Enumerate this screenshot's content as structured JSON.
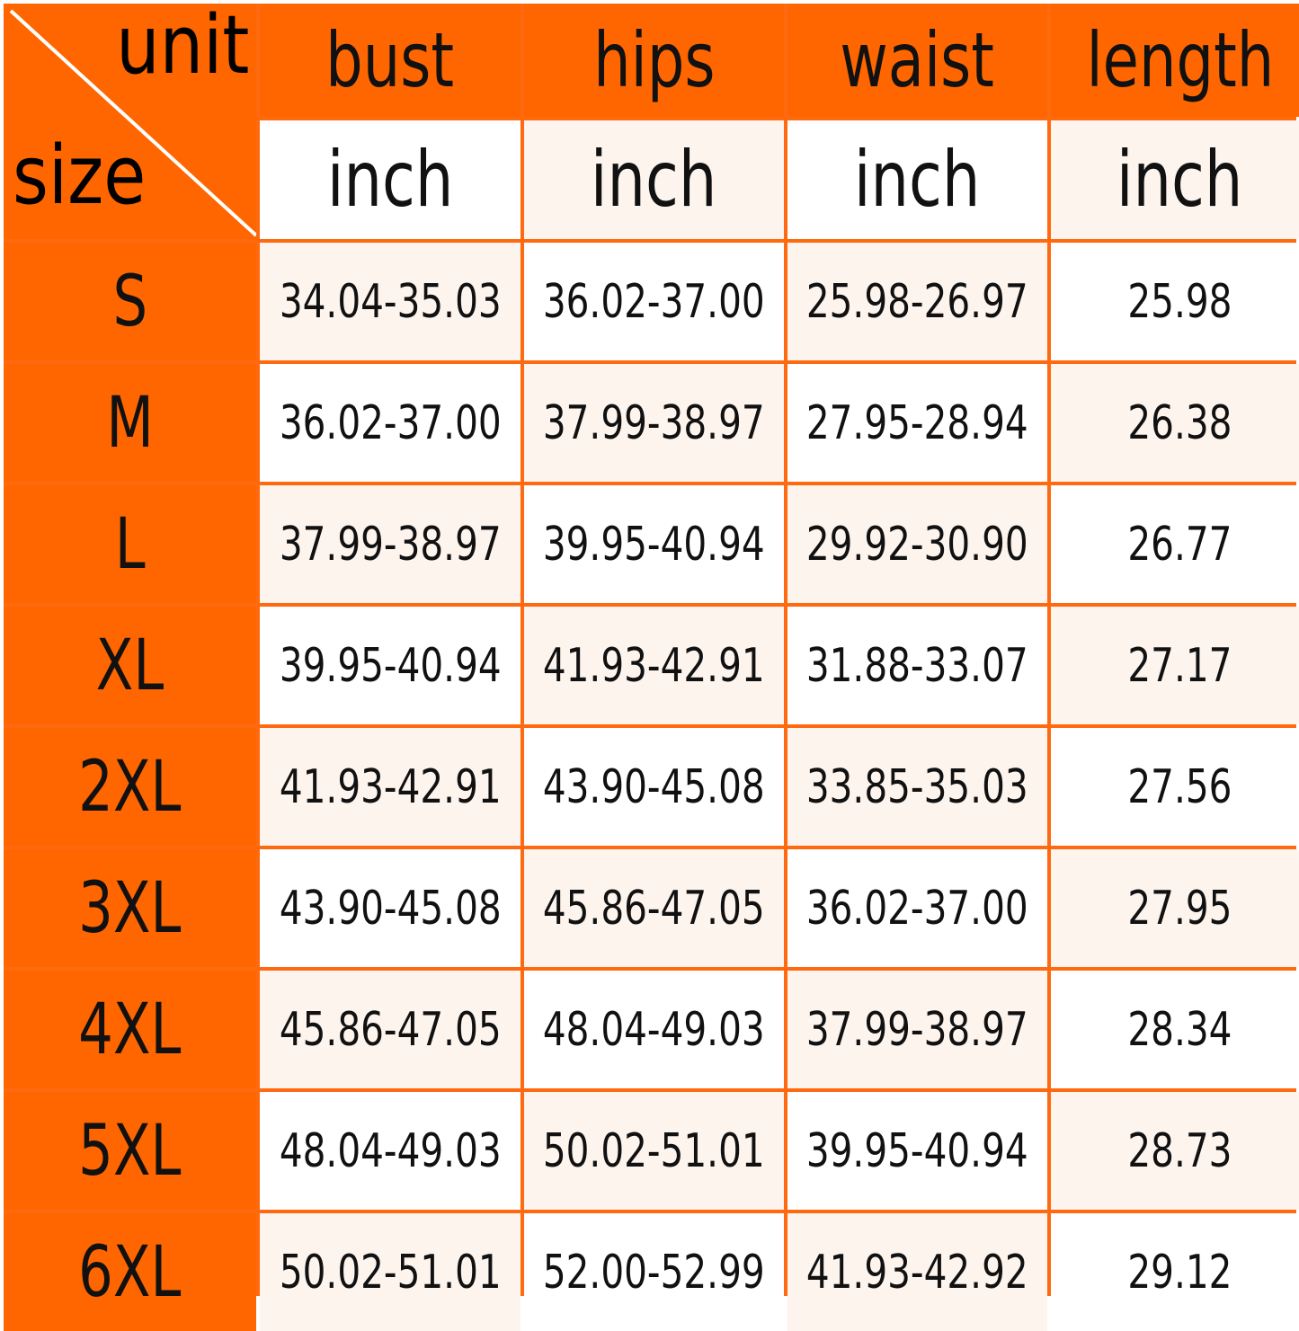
{
  "corner": {
    "top_label": "unit",
    "bottom_label": "size"
  },
  "columns": [
    "bust",
    "hips",
    "waist",
    "length"
  ],
  "units": [
    "inch",
    "inch",
    "inch",
    "inch"
  ],
  "rows": [
    {
      "size": "S",
      "values": [
        "34.04-35.03",
        "36.02-37.00",
        "25.98-26.97",
        "25.98"
      ]
    },
    {
      "size": "M",
      "values": [
        "36.02-37.00",
        "37.99-38.97",
        "27.95-28.94",
        "26.38"
      ]
    },
    {
      "size": "L",
      "values": [
        "37.99-38.97",
        "39.95-40.94",
        "29.92-30.90",
        "26.77"
      ]
    },
    {
      "size": "XL",
      "values": [
        "39.95-40.94",
        "41.93-42.91",
        "31.88-33.07",
        "27.17"
      ]
    },
    {
      "size": "2XL",
      "values": [
        "41.93-42.91",
        "43.90-45.08",
        "33.85-35.03",
        "27.56"
      ]
    },
    {
      "size": "3XL",
      "values": [
        "43.90-45.08",
        "45.86-47.05",
        "36.02-37.00",
        "27.95"
      ]
    },
    {
      "size": "4XL",
      "values": [
        "45.86-47.05",
        "48.04-49.03",
        "37.99-38.97",
        "28.34"
      ]
    },
    {
      "size": "5XL",
      "values": [
        "48.04-49.03",
        "50.02-51.01",
        "39.95-40.94",
        "28.73"
      ]
    },
    {
      "size": "6XL",
      "values": [
        "50.02-51.01",
        "52.00-52.99",
        "41.93-42.92",
        "29.12"
      ]
    }
  ],
  "colors": {
    "header": "#ff6600",
    "border": "#ff6a10",
    "cell_alt": "#fdf4ee",
    "cell": "#ffffff"
  }
}
